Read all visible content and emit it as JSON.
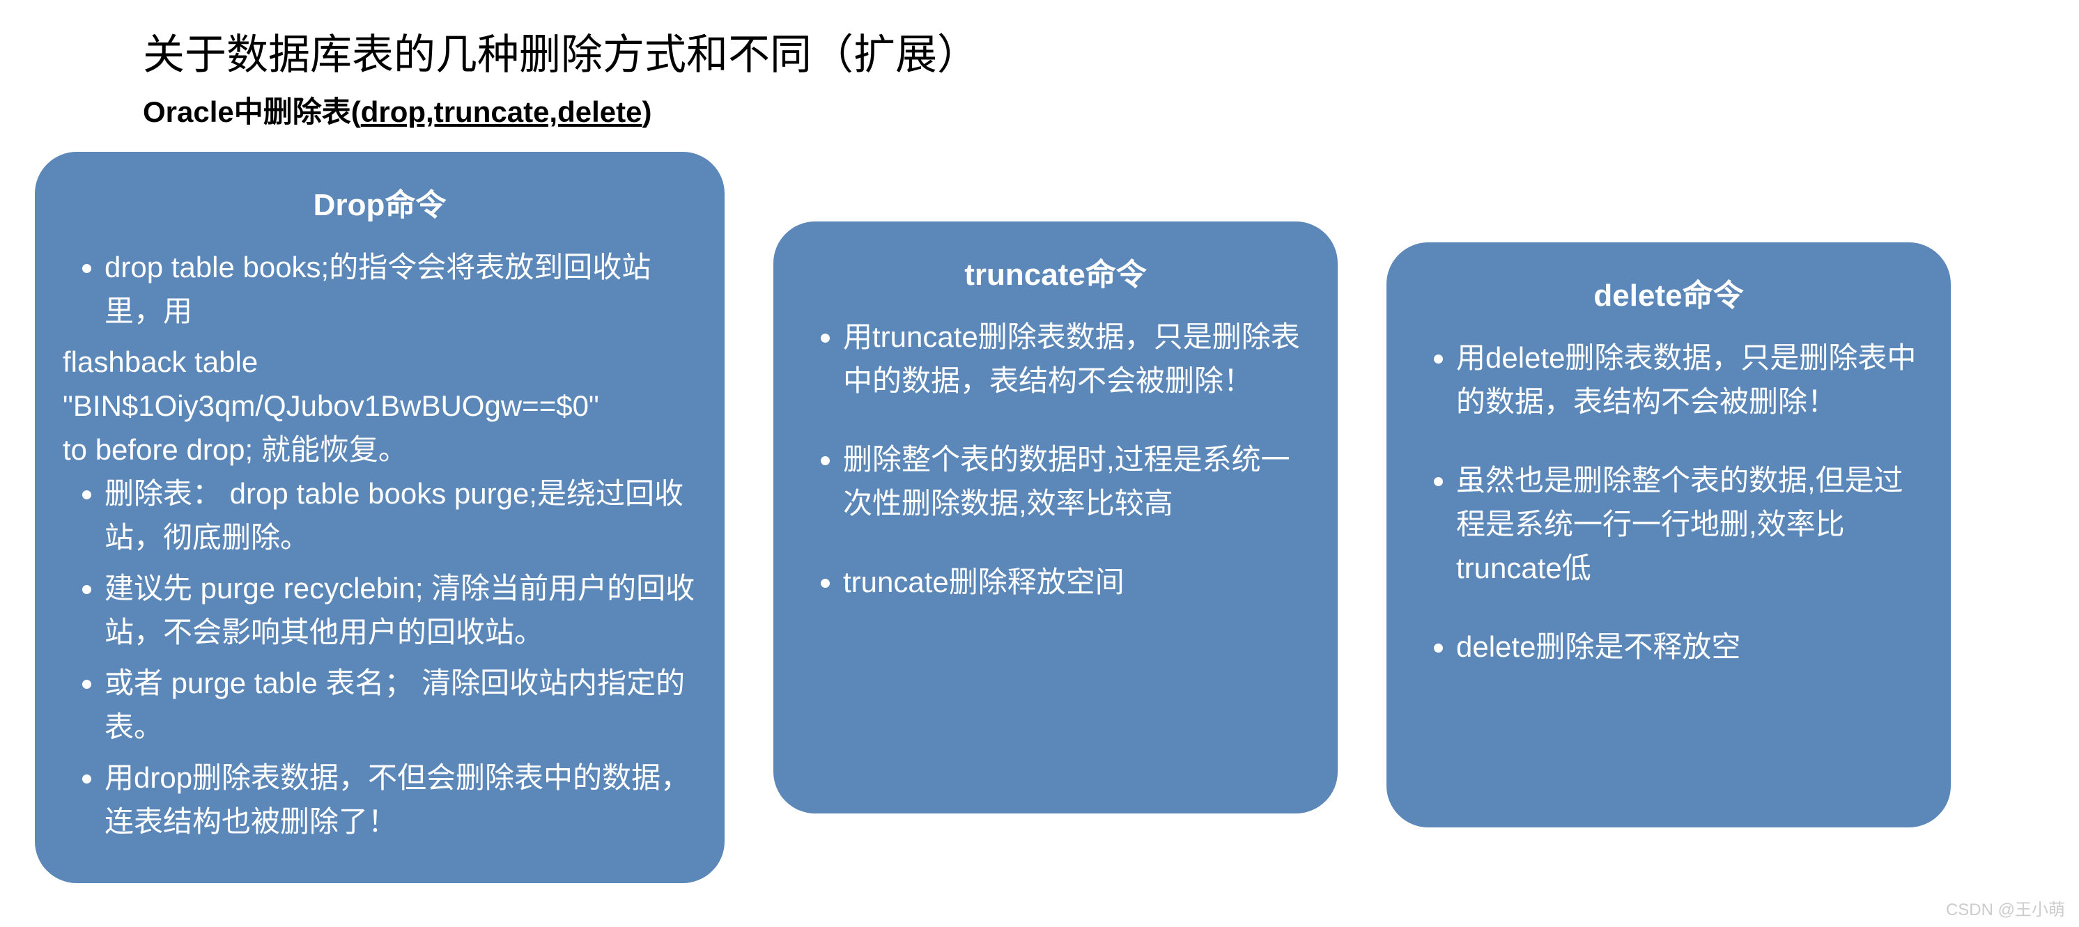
{
  "header": {
    "title": "关于数据库表的几种删除方式和不同（扩展）",
    "subtitle_prefix": "Oracle中删除表(",
    "subtitle_underlined": "drop,truncate,delete",
    "subtitle_suffix": ")"
  },
  "cards": {
    "drop": {
      "title": "Drop命令",
      "items": [
        "drop table books;的指令会将表放到回收站里，用"
      ],
      "plain_lines": [
        "flashback table",
        "\"BIN$1Oiy3qm/QJubov1BwBUOgw==$0\"",
        "to before drop;  就能恢复。"
      ],
      "items2": [
        "删除表：   drop table books purge;是绕过回收站，彻底删除。",
        "建议先   purge recyclebin;   清除当前用户的回收站，不会影响其他用户的回收站。",
        "或者   purge table 表名；   清除回收站内指定的表。",
        "用drop删除表数据，不但会删除表中的数据，连表结构也被删除了！"
      ]
    },
    "truncate": {
      "title": "truncate命令",
      "items": [
        "用truncate删除表数据，只是删除表中的数据，表结构不会被删除！",
        "删除整个表的数据时,过程是系统一次性删除数据,效率比较高",
        "truncate删除释放空间"
      ]
    },
    "delete": {
      "title": "delete命令",
      "items": [
        "用delete删除表数据，只是删除表中的数据，表结构不会被删除！",
        "虽然也是删除整个表的数据,但是过程是系统一行一行地删,效率比truncate低",
        "delete删除是不释放空"
      ]
    }
  },
  "watermark": "CSDN @王小萌",
  "styles": {
    "card_bg_color": "#5b87b9",
    "card_text_color": "#ffffff",
    "title_color": "#000000",
    "background_color": "#ffffff",
    "border_radius": 60
  }
}
